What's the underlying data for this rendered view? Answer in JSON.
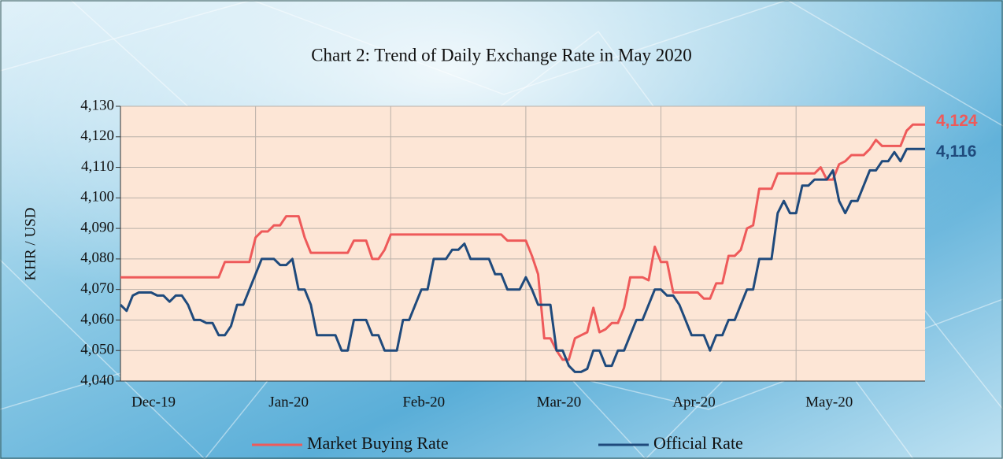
{
  "chart_data": {
    "type": "line",
    "title": "Chart 2: Trend of Daily Exchange Rate in May 2020",
    "y_label": "KHR / USD",
    "categories": [
      "Dec-19",
      null,
      null,
      null,
      null,
      null,
      null,
      null,
      null,
      null,
      null,
      null,
      null,
      null,
      null,
      null,
      null,
      null,
      null,
      null,
      null,
      null,
      "Jan-20",
      null,
      null,
      null,
      null,
      null,
      null,
      null,
      null,
      null,
      null,
      null,
      null,
      null,
      null,
      null,
      null,
      null,
      null,
      null,
      null,
      null,
      "Feb-20",
      null,
      null,
      null,
      null,
      null,
      null,
      null,
      null,
      null,
      null,
      null,
      null,
      null,
      null,
      null,
      null,
      null,
      null,
      null,
      null,
      null,
      "Mar-20",
      null,
      null,
      null,
      null,
      null,
      null,
      null,
      null,
      null,
      null,
      null,
      null,
      null,
      null,
      null,
      null,
      null,
      null,
      null,
      null,
      null,
      "Apr-20",
      null,
      null,
      null,
      null,
      null,
      null,
      null,
      null,
      null,
      null,
      null,
      null,
      null,
      null,
      null,
      null,
      null,
      null,
      null,
      null,
      null,
      "May-20",
      null,
      null,
      null,
      null,
      null,
      null,
      null,
      null,
      null,
      null,
      null,
      null,
      null,
      null,
      null,
      null,
      null,
      null,
      null,
      null,
      null
    ],
    "series": [
      {
        "name": "Market Buying Rate",
        "color": "#ee5a5a",
        "values": [
          4074,
          4074,
          4074,
          4074,
          4074,
          4074,
          4074,
          4074,
          4074,
          4074,
          4074,
          4074,
          4074,
          4074,
          4074,
          4074,
          4074,
          4079,
          4079,
          4079,
          4079,
          4079,
          4087,
          4089,
          4089,
          4091,
          4091,
          4094,
          4094,
          4094,
          4087,
          4082,
          4082,
          4082,
          4082,
          4082,
          4082,
          4082,
          4086,
          4086,
          4086,
          4080,
          4080,
          4083,
          4088,
          4088,
          4088,
          4088,
          4088,
          4088,
          4088,
          4088,
          4088,
          4088,
          4088,
          4088,
          4088,
          4088,
          4088,
          4088,
          4088,
          4088,
          4088,
          4086,
          4086,
          4086,
          4086,
          4081,
          4075,
          4054,
          4054,
          4050,
          4047,
          4047,
          4054,
          4055,
          4056,
          4064,
          4056,
          4057,
          4059,
          4059,
          4064,
          4074,
          4074,
          4074,
          4073,
          4084,
          4079,
          4079,
          4069,
          4069,
          4069,
          4069,
          4069,
          4067,
          4067,
          4072,
          4072,
          4081,
          4081,
          4083,
          4090,
          4091,
          4103,
          4103,
          4103,
          4108,
          4108,
          4108,
          4108,
          4108,
          4108,
          4108,
          4110,
          4106,
          4106,
          4111,
          4112,
          4114,
          4114,
          4114,
          4116,
          4119,
          4117,
          4117,
          4117,
          4117,
          4122,
          4124,
          4124,
          4124
        ]
      },
      {
        "name": "Official Rate",
        "color": "#1f4a7c",
        "values": [
          4065,
          4063,
          4068,
          4069,
          4069,
          4069,
          4068,
          4068,
          4066,
          4068,
          4068,
          4065,
          4060,
          4060,
          4059,
          4059,
          4055,
          4055,
          4058,
          4065,
          4065,
          4070,
          4075,
          4080,
          4080,
          4080,
          4078,
          4078,
          4080,
          4070,
          4070,
          4065,
          4055,
          4055,
          4055,
          4055,
          4050,
          4050,
          4060,
          4060,
          4060,
          4055,
          4055,
          4050,
          4050,
          4050,
          4060,
          4060,
          4065,
          4070,
          4070,
          4080,
          4080,
          4080,
          4083,
          4083,
          4085,
          4080,
          4080,
          4080,
          4080,
          4075,
          4075,
          4070,
          4070,
          4070,
          4074,
          4070,
          4065,
          4065,
          4065,
          4050,
          4050,
          4045,
          4043,
          4043,
          4044,
          4050,
          4050,
          4045,
          4045,
          4050,
          4050,
          4055,
          4060,
          4060,
          4065,
          4070,
          4070,
          4068,
          4068,
          4065,
          4060,
          4055,
          4055,
          4055,
          4050,
          4055,
          4055,
          4060,
          4060,
          4065,
          4070,
          4070,
          4080,
          4080,
          4080,
          4095,
          4099,
          4095,
          4095,
          4104,
          4104,
          4106,
          4106,
          4106,
          4109,
          4099,
          4095,
          4099,
          4099,
          4104,
          4109,
          4109,
          4112,
          4112,
          4115,
          4112,
          4116,
          4116,
          4116,
          4116
        ]
      }
    ],
    "annotations": [
      "4,124",
      "4,116"
    ],
    "ylim": [
      4040,
      4130
    ],
    "yticks": [
      {
        "value": 4040,
        "label": "4,040"
      },
      {
        "value": 4050,
        "label": "4,050"
      },
      {
        "value": 4060,
        "label": "4,060"
      },
      {
        "value": 4070,
        "label": "4,070"
      },
      {
        "value": 4080,
        "label": "4,080"
      },
      {
        "value": 4090,
        "label": "4,090"
      },
      {
        "value": 4100,
        "label": "4,100"
      },
      {
        "value": 4110,
        "label": "4,110"
      },
      {
        "value": 4120,
        "label": "4,120"
      },
      {
        "value": 4130,
        "label": "4,130"
      }
    ],
    "grid": true,
    "legend": "bottom"
  }
}
